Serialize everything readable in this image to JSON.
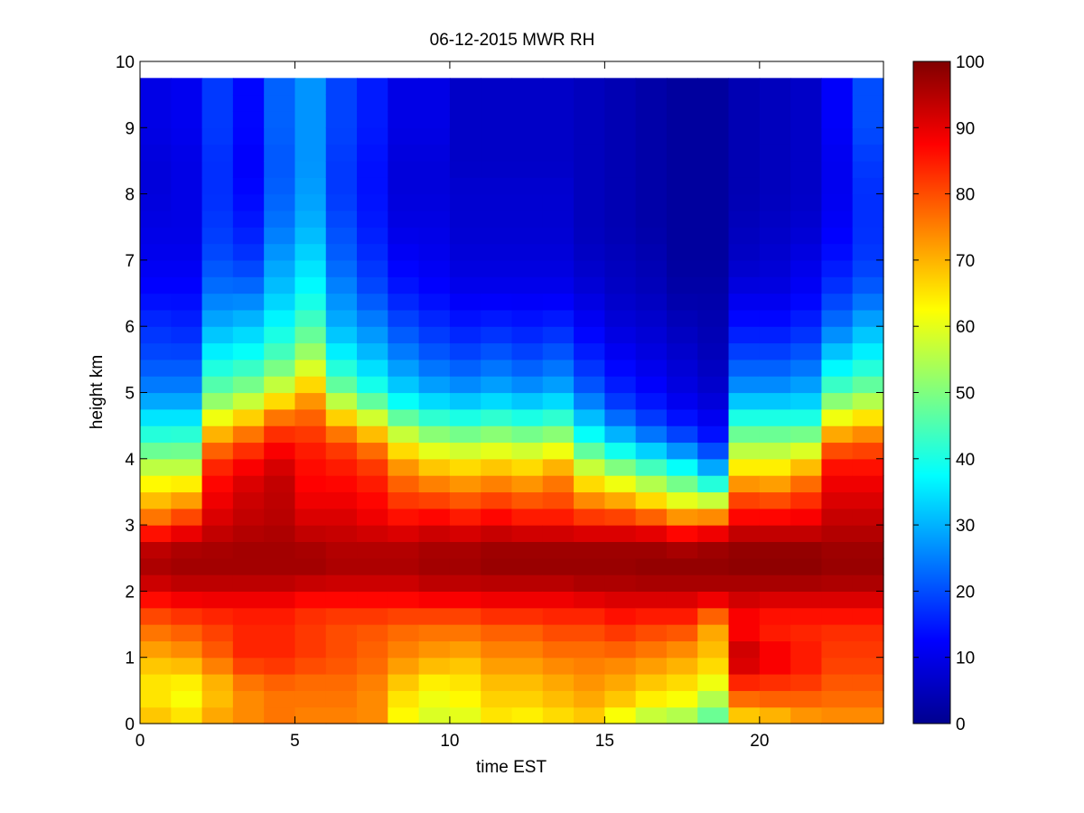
{
  "chart_data": {
    "type": "heatmap",
    "title": "06-12-2015 MWR RH",
    "xlabel": "time EST",
    "ylabel": "height km",
    "xlim": [
      0,
      24
    ],
    "ylim": [
      0,
      10
    ],
    "x_ticks": [
      "0",
      "5",
      "10",
      "15",
      "20"
    ],
    "y_ticks": [
      "0",
      "1",
      "2",
      "3",
      "4",
      "5",
      "6",
      "7",
      "8",
      "9",
      "10"
    ],
    "colorbar": {
      "colormap": "jet",
      "range": [
        0,
        100
      ],
      "ticks": [
        "0",
        "10",
        "20",
        "30",
        "40",
        "50",
        "60",
        "70",
        "80",
        "90",
        "100"
      ]
    },
    "grid": false,
    "time_bins_hours": [
      0,
      1,
      2,
      3,
      4,
      5,
      6,
      7,
      8,
      9,
      10,
      11,
      12,
      13,
      14,
      15,
      16,
      17,
      18,
      19,
      20,
      21,
      22,
      23
    ],
    "profile_heights_km": [
      0.0,
      0.25,
      0.5,
      0.75,
      1.0,
      1.25,
      1.5,
      1.75,
      2.0,
      2.25,
      2.5,
      2.75,
      3.0,
      3.25,
      3.5,
      3.75,
      4.0,
      4.25,
      4.5,
      4.75,
      5.0,
      5.5,
      6.0,
      6.5,
      7.0,
      7.5,
      8.0,
      8.5,
      9.0,
      9.5,
      9.75
    ],
    "rh_profiles_percent": [
      [
        70,
        66,
        64,
        66,
        70,
        74,
        78,
        83,
        90,
        95,
        96,
        92,
        80,
        72,
        66,
        60,
        52,
        44,
        38,
        32,
        26,
        20,
        17,
        13,
        11,
        10,
        9,
        9,
        10,
        10,
        10
      ],
      [
        68,
        62,
        62,
        66,
        72,
        76,
        80,
        85,
        92,
        96,
        97,
        94,
        85,
        76,
        68,
        60,
        52,
        45,
        38,
        32,
        26,
        20,
        16,
        13,
        11,
        10,
        10,
        10,
        11,
        11,
        11
      ],
      [
        72,
        70,
        68,
        72,
        78,
        80,
        82,
        86,
        92,
        96,
        97,
        95,
        92,
        90,
        88,
        86,
        82,
        74,
        66,
        56,
        48,
        38,
        30,
        24,
        20,
        18,
        17,
        17,
        18,
        18,
        18
      ],
      [
        74,
        74,
        74,
        78,
        84,
        84,
        84,
        86,
        92,
        96,
        97,
        96,
        94,
        93,
        92,
        90,
        86,
        80,
        72,
        62,
        52,
        40,
        32,
        24,
        18,
        15,
        13,
        12,
        13,
        13,
        13
      ],
      [
        76,
        76,
        76,
        80,
        84,
        84,
        84,
        86,
        92,
        96,
        97,
        96,
        95,
        94,
        94,
        93,
        90,
        86,
        80,
        72,
        60,
        46,
        38,
        32,
        28,
        24,
        22,
        21,
        22,
        22,
        22
      ],
      [
        74,
        76,
        76,
        78,
        82,
        82,
        82,
        84,
        90,
        96,
        97,
        95,
        92,
        90,
        88,
        87,
        86,
        84,
        80,
        76,
        70,
        55,
        45,
        38,
        34,
        30,
        28,
        27,
        27,
        27,
        27
      ],
      [
        74,
        76,
        76,
        78,
        80,
        80,
        80,
        84,
        90,
        95,
        96,
        94,
        92,
        90,
        88,
        86,
        84,
        80,
        72,
        62,
        50,
        38,
        30,
        26,
        22,
        20,
        18,
        18,
        19,
        19,
        19
      ],
      [
        74,
        74,
        74,
        76,
        78,
        78,
        80,
        84,
        90,
        95,
        96,
        94,
        90,
        88,
        86,
        84,
        80,
        74,
        64,
        52,
        42,
        32,
        26,
        20,
        17,
        15,
        14,
        14,
        15,
        15,
        15
      ],
      [
        62,
        64,
        66,
        70,
        74,
        76,
        78,
        84,
        90,
        95,
        96,
        94,
        88,
        84,
        80,
        76,
        70,
        62,
        52,
        42,
        34,
        26,
        20,
        15,
        12,
        10,
        9,
        9,
        10,
        10,
        10
      ],
      [
        58,
        60,
        62,
        66,
        72,
        74,
        78,
        84,
        92,
        96,
        97,
        95,
        90,
        84,
        78,
        72,
        64,
        56,
        46,
        38,
        30,
        22,
        17,
        13,
        11,
        10,
        9,
        9,
        10,
        10,
        10
      ],
      [
        58,
        62,
        64,
        66,
        70,
        74,
        78,
        84,
        92,
        96,
        97,
        95,
        88,
        82,
        76,
        70,
        62,
        54,
        44,
        36,
        28,
        20,
        15,
        11,
        9,
        8,
        8,
        7,
        7,
        7,
        7
      ],
      [
        64,
        66,
        68,
        70,
        74,
        76,
        80,
        86,
        92,
        97,
        98,
        96,
        90,
        84,
        78,
        72,
        64,
        56,
        46,
        38,
        30,
        22,
        16,
        11,
        9,
        8,
        8,
        7,
        7,
        7,
        7
      ],
      [
        62,
        66,
        68,
        70,
        74,
        76,
        80,
        86,
        92,
        97,
        98,
        96,
        88,
        82,
        76,
        70,
        62,
        54,
        44,
        36,
        28,
        20,
        15,
        11,
        9,
        8,
        8,
        7,
        7,
        7,
        7
      ],
      [
        64,
        68,
        70,
        72,
        76,
        78,
        82,
        86,
        92,
        97,
        98,
        96,
        88,
        82,
        78,
        74,
        66,
        56,
        46,
        38,
        30,
        22,
        16,
        11,
        9,
        8,
        8,
        7,
        7,
        7,
        7
      ],
      [
        66,
        70,
        72,
        74,
        76,
        78,
        82,
        86,
        94,
        97,
        98,
        96,
        86,
        78,
        70,
        62,
        52,
        42,
        34,
        28,
        22,
        16,
        12,
        9,
        7,
        6,
        6,
        6,
        6,
        6,
        6
      ],
      [
        58,
        66,
        70,
        72,
        76,
        80,
        84,
        88,
        94,
        97,
        98,
        96,
        86,
        76,
        66,
        56,
        44,
        34,
        26,
        20,
        16,
        12,
        9,
        7,
        6,
        5,
        5,
        5,
        5,
        5,
        5
      ],
      [
        52,
        62,
        66,
        70,
        74,
        78,
        82,
        88,
        94,
        98,
        98,
        96,
        84,
        72,
        60,
        50,
        38,
        28,
        20,
        16,
        13,
        10,
        8,
        6,
        5,
        4,
        4,
        4,
        4,
        4,
        4
      ],
      [
        50,
        60,
        64,
        68,
        72,
        76,
        82,
        88,
        94,
        98,
        98,
        94,
        80,
        66,
        54,
        44,
        32,
        22,
        16,
        12,
        10,
        8,
        6,
        4,
        3,
        3,
        3,
        3,
        3,
        3,
        3
      ],
      [
        44,
        52,
        58,
        64,
        68,
        70,
        72,
        84,
        94,
        98,
        98,
        96,
        82,
        66,
        48,
        34,
        24,
        16,
        12,
        10,
        8,
        6,
        5,
        4,
        3,
        3,
        3,
        3,
        3,
        3,
        3
      ],
      [
        62,
        74,
        80,
        88,
        94,
        90,
        86,
        90,
        94,
        98,
        99,
        97,
        90,
        84,
        78,
        68,
        60,
        52,
        44,
        36,
        28,
        20,
        14,
        10,
        7,
        6,
        5,
        5,
        5,
        5,
        5
      ],
      [
        64,
        76,
        80,
        86,
        90,
        86,
        84,
        88,
        94,
        98,
        99,
        97,
        90,
        84,
        76,
        68,
        60,
        52,
        44,
        36,
        28,
        20,
        14,
        10,
        8,
        7,
        6,
        6,
        6,
        6,
        6
      ],
      [
        70,
        76,
        80,
        84,
        86,
        84,
        84,
        88,
        94,
        98,
        99,
        97,
        90,
        86,
        80,
        74,
        64,
        54,
        44,
        36,
        30,
        22,
        16,
        12,
        10,
        8,
        7,
        7,
        7,
        7,
        7
      ],
      [
        72,
        76,
        78,
        80,
        82,
        82,
        84,
        88,
        94,
        97,
        98,
        96,
        94,
        92,
        90,
        88,
        84,
        76,
        66,
        56,
        46,
        34,
        24,
        18,
        14,
        12,
        11,
        11,
        12,
        12,
        12
      ],
      [
        72,
        76,
        78,
        80,
        82,
        82,
        84,
        88,
        94,
        97,
        98,
        96,
        94,
        92,
        90,
        88,
        84,
        78,
        70,
        60,
        50,
        38,
        30,
        22,
        18,
        17,
        17,
        18,
        20,
        20,
        20
      ]
    ]
  }
}
